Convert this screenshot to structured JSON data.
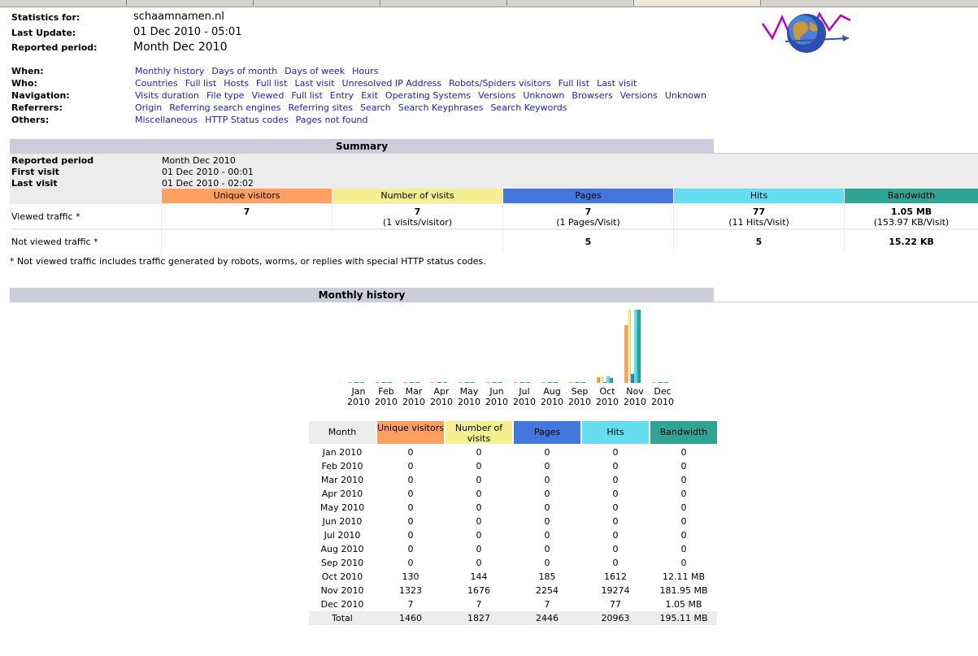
{
  "header": {
    "stats_for_label": "Statistics for:",
    "stats_for_value": "schaamnamen.nl",
    "last_update_label": "Last Update:",
    "last_update_value": "01 Dec 2010 - 05:01",
    "period_label": "Reported period:",
    "period_value": "Month Dec 2010"
  },
  "nav": {
    "when_label": "When:",
    "when": [
      "Monthly history",
      "Days of month",
      "Days of week",
      "Hours"
    ],
    "who_label": "Who:",
    "who": [
      "Countries",
      "Full list",
      "Hosts",
      "Full list",
      "Last visit",
      "Unresolved IP Address",
      "Robots/Spiders visitors",
      "Full list",
      "Last visit"
    ],
    "navigation_label": "Navigation:",
    "navigation": [
      "Visits duration",
      "File type",
      "Viewed",
      "Full list",
      "Entry",
      "Exit",
      "Operating Systems",
      "Versions",
      "Unknown",
      "Browsers",
      "Versions",
      "Unknown"
    ],
    "referrers_label": "Referrers:",
    "referrers": [
      "Origin",
      "Referring search engines",
      "Referring sites",
      "Search",
      "Search Keyphrases",
      "Search Keywords"
    ],
    "others_label": "Others:",
    "others": [
      "Miscellaneous",
      "HTTP Status codes",
      "Pages not found"
    ]
  },
  "summary": {
    "title": "Summary",
    "reported_period_label": "Reported period",
    "reported_period_value": "Month Dec 2010",
    "first_visit_label": "First visit",
    "first_visit_value": "01 Dec 2010 - 00:01",
    "last_visit_label": "Last visit",
    "last_visit_value": "01 Dec 2010 - 02:02",
    "col_unique": "Unique visitors",
    "col_visits": "Number of visits",
    "col_pages": "Pages",
    "col_hits": "Hits",
    "col_bandwidth": "Bandwidth",
    "viewed_label": "Viewed traffic *",
    "viewed_unique": "7",
    "viewed_visits": "7",
    "viewed_visits_sub": "(1 visits/visitor)",
    "viewed_pages": "7",
    "viewed_pages_sub": "(1 Pages/Visit)",
    "viewed_hits": "77",
    "viewed_hits_sub": "(11 Hits/Visit)",
    "viewed_bandwidth": "1.05 MB",
    "viewed_bandwidth_sub": "(153.97 KB/Visit)",
    "not_viewed_label": "Not viewed traffic *",
    "not_viewed_pages": "5",
    "not_viewed_hits": "5",
    "not_viewed_bandwidth": "15.22 KB",
    "note": "* Not viewed traffic includes traffic generated by robots, worms, or replies with special HTTP status codes."
  },
  "history": {
    "title": "Monthly history",
    "col_month": "Month",
    "col_unique": "Unique visitors",
    "col_visits": "Number of visits",
    "col_pages": "Pages",
    "col_hits": "Hits",
    "col_bandwidth": "Bandwidth",
    "total_label": "Total",
    "total": [
      "1460",
      "1827",
      "2446",
      "20963",
      "195.11 MB"
    ]
  },
  "colors": {
    "unique": "#ffa060",
    "visits": "#f4f090",
    "pages": "#4477dd",
    "hits": "#66ddee",
    "bandwidth": "#2ea495",
    "section": "#ccccdd",
    "link": "#2020c0"
  },
  "chart_data": {
    "type": "bar",
    "categories": [
      "Jan 2010",
      "Feb 2010",
      "Mar 2010",
      "Apr 2010",
      "May 2010",
      "Jun 2010",
      "Jul 2010",
      "Aug 2010",
      "Sep 2010",
      "Oct 2010",
      "Nov 2010",
      "Dec 2010"
    ],
    "series": [
      {
        "name": "Unique visitors",
        "values": [
          0,
          0,
          0,
          0,
          0,
          0,
          0,
          0,
          0,
          130,
          1323,
          7
        ]
      },
      {
        "name": "Number of visits",
        "values": [
          0,
          0,
          0,
          0,
          0,
          0,
          0,
          0,
          0,
          144,
          1676,
          7
        ]
      },
      {
        "name": "Pages",
        "values": [
          0,
          0,
          0,
          0,
          0,
          0,
          0,
          0,
          0,
          185,
          2254,
          7
        ]
      },
      {
        "name": "Hits",
        "values": [
          0,
          0,
          0,
          0,
          0,
          0,
          0,
          0,
          0,
          1612,
          19274,
          77
        ]
      },
      {
        "name": "Bandwidth",
        "values": [
          "0",
          "0",
          "0",
          "0",
          "0",
          "0",
          "0",
          "0",
          "0",
          "12.11 MB",
          "181.95 MB",
          "1.05 MB"
        ]
      }
    ],
    "bandwidth_mb": [
      0,
      0,
      0,
      0,
      0,
      0,
      0,
      0,
      0,
      12.11,
      181.95,
      1.05
    ],
    "month_short": [
      "Jan",
      "Feb",
      "Mar",
      "Apr",
      "May",
      "Jun",
      "Jul",
      "Aug",
      "Sep",
      "Oct",
      "Nov",
      "Dec"
    ],
    "year": "2010"
  }
}
